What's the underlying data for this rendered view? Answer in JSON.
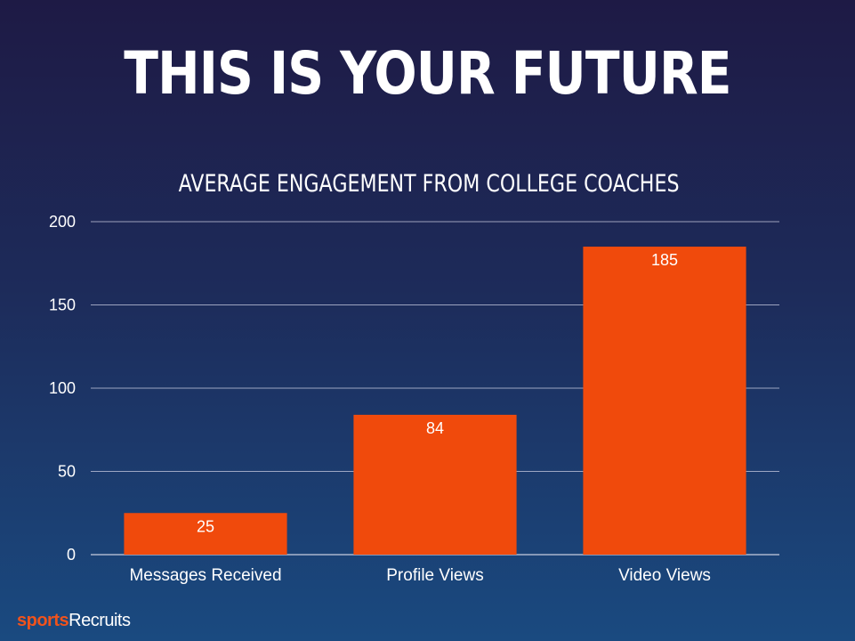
{
  "page": {
    "headline": "THIS IS YOUR FUTURE",
    "logo": {
      "part1": "sports",
      "part2": "Recruits"
    }
  },
  "colors": {
    "bar": "#f04a0c",
    "gridline": "#c8cde0",
    "text": "#ffffff"
  },
  "chart_data": {
    "type": "bar",
    "title": "AVERAGE ENGAGEMENT FROM COLLEGE COACHES",
    "xlabel": "",
    "ylabel": "",
    "categories": [
      "Messages Received",
      "Profile Views",
      "Video Views"
    ],
    "values": [
      25,
      84,
      185
    ],
    "ylim": [
      0,
      200
    ],
    "yticks": [
      0,
      50,
      100,
      150,
      200
    ],
    "grid": true,
    "data_labels": true
  }
}
